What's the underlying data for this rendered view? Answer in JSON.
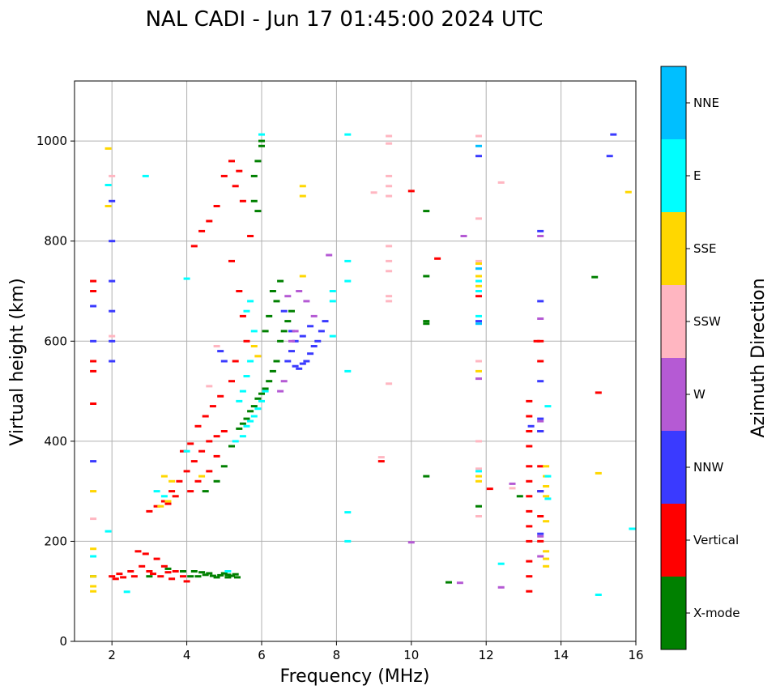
{
  "chart_data": {
    "type": "scatter",
    "title": "NAL CADI - Jun 17 01:45:00 2024 UTC",
    "xlabel": "Frequency (MHz)",
    "ylabel": "Virtual height (km)",
    "xlim": [
      1,
      16
    ],
    "ylim": [
      0,
      1120
    ],
    "xticks": [
      2,
      4,
      6,
      8,
      10,
      12,
      14,
      16
    ],
    "yticks": [
      0,
      200,
      400,
      600,
      800,
      1000
    ],
    "grid": true,
    "colorbar": {
      "label": "Azimuth Direction",
      "categories": [
        "X-mode",
        "Vertical",
        "NNW",
        "W",
        "SSW",
        "SSE",
        "E",
        "NNE"
      ],
      "colors": [
        "#008000",
        "#ff0000",
        "#3a3aff",
        "#b55ad4",
        "#ffb6c1",
        "#ffd700",
        "#00ffff",
        "#00bfff"
      ]
    },
    "series": [
      {
        "name": "X-mode",
        "points": [
          [
            4.3,
            130
          ],
          [
            4.5,
            133
          ],
          [
            4.7,
            131
          ],
          [
            4.9,
            132
          ],
          [
            5.1,
            133
          ],
          [
            5.2,
            131
          ],
          [
            4.6,
            136
          ],
          [
            4.8,
            128
          ],
          [
            5.0,
            136
          ],
          [
            4.4,
            138
          ],
          [
            4.2,
            140
          ],
          [
            5.6,
            445
          ],
          [
            5.7,
            460
          ],
          [
            5.8,
            470
          ],
          [
            5.9,
            485
          ],
          [
            6.0,
            495
          ],
          [
            5.5,
            435
          ],
          [
            5.4,
            425
          ],
          [
            6.1,
            505
          ],
          [
            6.2,
            520
          ],
          [
            6.3,
            540
          ],
          [
            6.4,
            560
          ],
          [
            6.5,
            600
          ],
          [
            6.6,
            620
          ],
          [
            6.7,
            640
          ],
          [
            6.8,
            660
          ],
          [
            6.3,
            700
          ],
          [
            6.4,
            680
          ],
          [
            6.2,
            650
          ],
          [
            6.1,
            620
          ],
          [
            6.5,
            720
          ],
          [
            6.0,
            1000
          ],
          [
            5.9,
            960
          ],
          [
            5.8,
            930
          ],
          [
            6.0,
            990
          ],
          [
            5.8,
            880
          ],
          [
            5.9,
            860
          ],
          [
            5.2,
            390
          ],
          [
            5.0,
            350
          ],
          [
            4.8,
            320
          ],
          [
            4.5,
            300
          ],
          [
            12.9,
            290
          ],
          [
            11.8,
            270
          ],
          [
            10.4,
            860
          ],
          [
            10.4,
            730
          ],
          [
            10.4,
            640
          ],
          [
            10.4,
            635
          ],
          [
            10.4,
            330
          ],
          [
            14.9,
            728
          ],
          [
            11.0,
            118
          ],
          [
            1.5,
            130
          ],
          [
            4.1,
            130
          ],
          [
            3.9,
            140
          ],
          [
            3.5,
            145
          ],
          [
            3.0,
            130
          ],
          [
            5.3,
            134
          ],
          [
            5.1,
            128
          ],
          [
            5.35,
            128
          ]
        ]
      },
      {
        "name": "Vertical",
        "points": [
          [
            2.0,
            130
          ],
          [
            2.1,
            125
          ],
          [
            2.2,
            135
          ],
          [
            2.3,
            128
          ],
          [
            2.5,
            140
          ],
          [
            2.6,
            130
          ],
          [
            2.8,
            150
          ],
          [
            3.0,
            140
          ],
          [
            3.1,
            135
          ],
          [
            3.3,
            130
          ],
          [
            3.5,
            138
          ],
          [
            3.6,
            125
          ],
          [
            3.7,
            140
          ],
          [
            3.9,
            130
          ],
          [
            4.0,
            120
          ],
          [
            3.4,
            150
          ],
          [
            3.2,
            165
          ],
          [
            2.9,
            175
          ],
          [
            2.7,
            180
          ],
          [
            3.0,
            260
          ],
          [
            3.2,
            270
          ],
          [
            3.4,
            280
          ],
          [
            3.6,
            300
          ],
          [
            3.8,
            320
          ],
          [
            4.0,
            340
          ],
          [
            4.2,
            360
          ],
          [
            4.4,
            380
          ],
          [
            4.6,
            400
          ],
          [
            4.8,
            410
          ],
          [
            5.0,
            420
          ],
          [
            3.9,
            380
          ],
          [
            4.1,
            395
          ],
          [
            4.3,
            430
          ],
          [
            4.5,
            450
          ],
          [
            4.7,
            470
          ],
          [
            4.9,
            490
          ],
          [
            3.7,
            290
          ],
          [
            3.5,
            275
          ],
          [
            4.1,
            300
          ],
          [
            4.3,
            320
          ],
          [
            4.6,
            340
          ],
          [
            4.8,
            370
          ],
          [
            4.2,
            790
          ],
          [
            4.4,
            820
          ],
          [
            4.6,
            840
          ],
          [
            4.8,
            870
          ],
          [
            5.0,
            930
          ],
          [
            5.2,
            960
          ],
          [
            5.4,
            940
          ],
          [
            5.3,
            910
          ],
          [
            5.5,
            880
          ],
          [
            5.7,
            810
          ],
          [
            5.2,
            760
          ],
          [
            5.4,
            700
          ],
          [
            5.5,
            650
          ],
          [
            5.6,
            600
          ],
          [
            5.3,
            560
          ],
          [
            5.2,
            520
          ],
          [
            13.15,
            100
          ],
          [
            13.15,
            130
          ],
          [
            13.15,
            160
          ],
          [
            13.15,
            200
          ],
          [
            13.15,
            230
          ],
          [
            13.15,
            260
          ],
          [
            13.15,
            290
          ],
          [
            13.15,
            320
          ],
          [
            13.15,
            350
          ],
          [
            13.15,
            390
          ],
          [
            13.15,
            420
          ],
          [
            13.15,
            450
          ],
          [
            13.15,
            480
          ],
          [
            13.45,
            200
          ],
          [
            13.45,
            250
          ],
          [
            13.45,
            300
          ],
          [
            13.45,
            350
          ],
          [
            13.45,
            420
          ],
          [
            13.45,
            560
          ],
          [
            13.45,
            600
          ],
          [
            1.5,
            540
          ],
          [
            1.5,
            560
          ],
          [
            1.5,
            700
          ],
          [
            1.5,
            720
          ],
          [
            1.5,
            475
          ],
          [
            9.2,
            360
          ],
          [
            10.0,
            900
          ],
          [
            10.7,
            765
          ],
          [
            11.8,
            690
          ],
          [
            12.1,
            305
          ],
          [
            15.0,
            497
          ],
          [
            13.35,
            600
          ]
        ]
      },
      {
        "name": "NNW",
        "points": [
          [
            2.0,
            560
          ],
          [
            2.0,
            600
          ],
          [
            2.0,
            660
          ],
          [
            2.0,
            720
          ],
          [
            2.0,
            800
          ],
          [
            2.0,
            880
          ],
          [
            1.5,
            360
          ],
          [
            1.5,
            600
          ],
          [
            1.5,
            670
          ],
          [
            6.7,
            560
          ],
          [
            6.8,
            580
          ],
          [
            6.9,
            550
          ],
          [
            7.0,
            545
          ],
          [
            7.1,
            555
          ],
          [
            7.2,
            560
          ],
          [
            7.3,
            575
          ],
          [
            7.4,
            590
          ],
          [
            7.5,
            600
          ],
          [
            7.6,
            620
          ],
          [
            7.7,
            640
          ],
          [
            6.6,
            660
          ],
          [
            6.8,
            620
          ],
          [
            6.9,
            600
          ],
          [
            7.1,
            610
          ],
          [
            7.3,
            630
          ],
          [
            4.9,
            580
          ],
          [
            5.0,
            560
          ],
          [
            13.45,
            420
          ],
          [
            13.45,
            445
          ],
          [
            13.45,
            520
          ],
          [
            13.45,
            680
          ],
          [
            13.45,
            820
          ],
          [
            13.2,
            430
          ],
          [
            11.8,
            640
          ],
          [
            11.8,
            970
          ],
          [
            15.3,
            970
          ],
          [
            15.4,
            1013
          ],
          [
            13.45,
            300
          ],
          [
            13.45,
            215
          ]
        ]
      },
      {
        "name": "W",
        "points": [
          [
            6.8,
            600
          ],
          [
            6.9,
            620
          ],
          [
            6.7,
            690
          ],
          [
            6.6,
            520
          ],
          [
            6.5,
            500
          ],
          [
            7.0,
            700
          ],
          [
            7.2,
            680
          ],
          [
            7.4,
            650
          ],
          [
            11.3,
            117
          ],
          [
            11.4,
            810
          ],
          [
            12.4,
            108
          ],
          [
            13.45,
            170
          ],
          [
            13.45,
            210
          ],
          [
            13.45,
            440
          ],
          [
            13.45,
            645
          ],
          [
            12.7,
            315
          ],
          [
            11.8,
            525
          ],
          [
            10.0,
            198
          ],
          [
            7.8,
            772
          ],
          [
            13.45,
            810
          ]
        ]
      },
      {
        "name": "SSW",
        "points": [
          [
            9.4,
            1010
          ],
          [
            9.4,
            995
          ],
          [
            9.4,
            930
          ],
          [
            9.4,
            910
          ],
          [
            9.4,
            890
          ],
          [
            9.4,
            790
          ],
          [
            9.4,
            760
          ],
          [
            9.4,
            740
          ],
          [
            9.4,
            690
          ],
          [
            9.4,
            680
          ],
          [
            9.4,
            515
          ],
          [
            9.0,
            897
          ],
          [
            12.4,
            917
          ],
          [
            11.8,
            1010
          ],
          [
            11.8,
            845
          ],
          [
            11.8,
            760
          ],
          [
            11.8,
            560
          ],
          [
            11.8,
            345
          ],
          [
            11.8,
            400
          ],
          [
            9.2,
            368
          ],
          [
            4.6,
            510
          ],
          [
            4.8,
            590
          ],
          [
            5.9,
            570
          ],
          [
            1.5,
            245
          ],
          [
            1.5,
            300
          ],
          [
            12.7,
            306
          ],
          [
            11.8,
            250
          ],
          [
            2.0,
            930
          ],
          [
            2.0,
            610
          ]
        ]
      },
      {
        "name": "SSE",
        "points": [
          [
            7.1,
            910
          ],
          [
            7.1,
            890
          ],
          [
            7.1,
            730
          ],
          [
            1.5,
            100
          ],
          [
            1.5,
            110
          ],
          [
            1.5,
            130
          ],
          [
            1.5,
            185
          ],
          [
            1.5,
            300
          ],
          [
            3.3,
            270
          ],
          [
            3.5,
            280
          ],
          [
            3.4,
            330
          ],
          [
            3.6,
            320
          ],
          [
            4.4,
            330
          ],
          [
            5.8,
            590
          ],
          [
            5.9,
            570
          ],
          [
            13.6,
            150
          ],
          [
            13.6,
            165
          ],
          [
            13.6,
            180
          ],
          [
            13.6,
            240
          ],
          [
            13.6,
            290
          ],
          [
            13.6,
            310
          ],
          [
            13.6,
            330
          ],
          [
            13.6,
            350
          ],
          [
            15.0,
            336
          ],
          [
            15.8,
            898
          ],
          [
            11.8,
            755
          ],
          [
            11.8,
            730
          ],
          [
            11.8,
            710
          ],
          [
            11.8,
            540
          ],
          [
            11.8,
            330
          ],
          [
            11.8,
            320
          ],
          [
            1.9,
            985
          ],
          [
            1.9,
            870
          ]
        ]
      },
      {
        "name": "E",
        "points": [
          [
            5.3,
            400
          ],
          [
            5.5,
            410
          ],
          [
            5.6,
            430
          ],
          [
            5.7,
            440
          ],
          [
            5.8,
            450
          ],
          [
            5.9,
            465
          ],
          [
            6.0,
            480
          ],
          [
            6.1,
            500
          ],
          [
            5.4,
            480
          ],
          [
            5.5,
            500
          ],
          [
            5.6,
            530
          ],
          [
            5.7,
            560
          ],
          [
            5.6,
            660
          ],
          [
            5.7,
            680
          ],
          [
            5.8,
            620
          ],
          [
            7.9,
            680
          ],
          [
            7.9,
            700
          ],
          [
            8.3,
            540
          ],
          [
            8.3,
            720
          ],
          [
            8.3,
            760
          ],
          [
            8.3,
            258
          ],
          [
            8.3,
            200
          ],
          [
            8.3,
            1013
          ],
          [
            13.65,
            285
          ],
          [
            13.65,
            330
          ],
          [
            11.8,
            340
          ],
          [
            11.8,
            650
          ],
          [
            11.8,
            700
          ],
          [
            11.8,
            720
          ],
          [
            12.4,
            155
          ],
          [
            15.0,
            93
          ],
          [
            15.9,
            225
          ],
          [
            1.5,
            170
          ],
          [
            1.9,
            220
          ],
          [
            1.9,
            912
          ],
          [
            3.4,
            290
          ],
          [
            3.2,
            300
          ],
          [
            4.0,
            380
          ],
          [
            2.4,
            99
          ],
          [
            2.9,
            930
          ],
          [
            4.0,
            725
          ],
          [
            5.1,
            140
          ],
          [
            7.9,
            610
          ],
          [
            13.65,
            470
          ],
          [
            6.0,
            1013
          ]
        ]
      },
      {
        "name": "NNE",
        "points": [
          [
            11.8,
            990
          ],
          [
            11.8,
            745
          ],
          [
            11.8,
            635
          ]
        ]
      }
    ]
  }
}
